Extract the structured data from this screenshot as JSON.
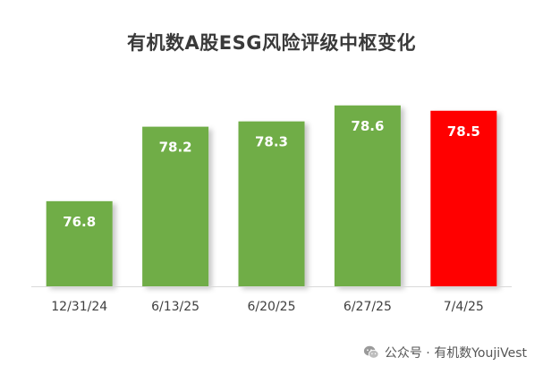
{
  "chart_data": {
    "type": "bar",
    "title": "有机数A股ESG风险评级中枢变化",
    "xlabel": "",
    "ylabel": "",
    "categories": [
      "12/31/24",
      "6/13/25",
      "6/20/25",
      "6/27/25",
      "7/4/25"
    ],
    "values": [
      76.8,
      78.2,
      78.3,
      78.6,
      78.5
    ],
    "value_labels": [
      "76.8",
      "78.2",
      "78.3",
      "78.6",
      "78.5"
    ],
    "ylim": [
      75.2,
      78.9
    ],
    "grid": false,
    "legend": "none",
    "colors": [
      "#70ad47",
      "#70ad47",
      "#70ad47",
      "#70ad47",
      "#ff0000"
    ],
    "label_color": "#ffffff",
    "baseline_color": "#d9d9d9"
  },
  "watermark": {
    "icon": "wechat-icon",
    "text": "公众号 · 有机数YoujiVest"
  }
}
